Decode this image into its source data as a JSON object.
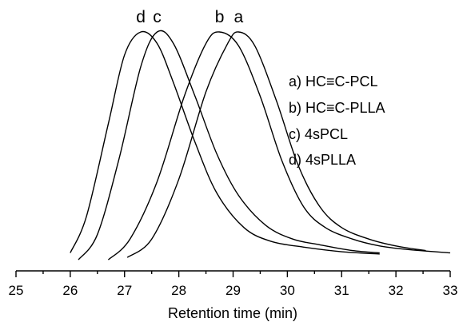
{
  "chart_data": {
    "type": "line",
    "title": "",
    "xlabel": "Retention time (min)",
    "ylabel": "",
    "xlim": [
      25,
      33
    ],
    "ylim": [
      0,
      1.1
    ],
    "xticks": [
      "25",
      "26",
      "27",
      "28",
      "29",
      "30",
      "31",
      "32",
      "33"
    ],
    "minor_xtick_step": 0.5,
    "grid": false,
    "legend_position": "top-right",
    "legend": [
      "a) HC≡C-PCL",
      "b) HC≡C-PLLA",
      "c) 4sPCL",
      "d) 4sPLLA"
    ],
    "series": [
      {
        "label": "a",
        "points": [
          [
            27.05,
            0.02
          ],
          [
            27.5,
            0.1
          ],
          [
            28.0,
            0.36
          ],
          [
            28.5,
            0.74
          ],
          [
            28.9,
            0.95
          ],
          [
            29.1,
            1.0
          ],
          [
            29.4,
            0.94
          ],
          [
            29.8,
            0.7
          ],
          [
            30.2,
            0.42
          ],
          [
            30.6,
            0.24
          ],
          [
            31.0,
            0.15
          ],
          [
            31.5,
            0.1
          ],
          [
            32.0,
            0.07
          ],
          [
            32.55,
            0.05
          ]
        ]
      },
      {
        "label": "b",
        "points": [
          [
            26.7,
            0.01
          ],
          [
            27.1,
            0.1
          ],
          [
            27.6,
            0.35
          ],
          [
            28.1,
            0.72
          ],
          [
            28.5,
            0.95
          ],
          [
            28.75,
            1.0
          ],
          [
            29.1,
            0.94
          ],
          [
            29.5,
            0.72
          ],
          [
            29.9,
            0.44
          ],
          [
            30.3,
            0.24
          ],
          [
            30.7,
            0.15
          ],
          [
            31.2,
            0.1
          ],
          [
            31.7,
            0.07
          ],
          [
            32.2,
            0.055
          ],
          [
            33.0,
            0.04
          ]
        ]
      },
      {
        "label": "c",
        "points": [
          [
            26.15,
            0.01
          ],
          [
            26.5,
            0.12
          ],
          [
            26.9,
            0.45
          ],
          [
            27.3,
            0.85
          ],
          [
            27.6,
            1.0
          ],
          [
            27.9,
            0.95
          ],
          [
            28.3,
            0.72
          ],
          [
            28.7,
            0.47
          ],
          [
            29.1,
            0.29
          ],
          [
            29.6,
            0.16
          ],
          [
            30.1,
            0.1
          ],
          [
            30.6,
            0.075
          ],
          [
            31.2,
            0.05
          ],
          [
            31.7,
            0.04
          ]
        ]
      },
      {
        "label": "d",
        "points": [
          [
            26.0,
            0.04
          ],
          [
            26.3,
            0.2
          ],
          [
            26.7,
            0.6
          ],
          [
            27.0,
            0.9
          ],
          [
            27.3,
            1.0
          ],
          [
            27.6,
            0.95
          ],
          [
            27.9,
            0.78
          ],
          [
            28.3,
            0.52
          ],
          [
            28.7,
            0.3
          ],
          [
            29.2,
            0.15
          ],
          [
            29.7,
            0.09
          ],
          [
            30.3,
            0.065
          ],
          [
            31.0,
            0.045
          ],
          [
            31.7,
            0.035
          ]
        ]
      }
    ]
  }
}
